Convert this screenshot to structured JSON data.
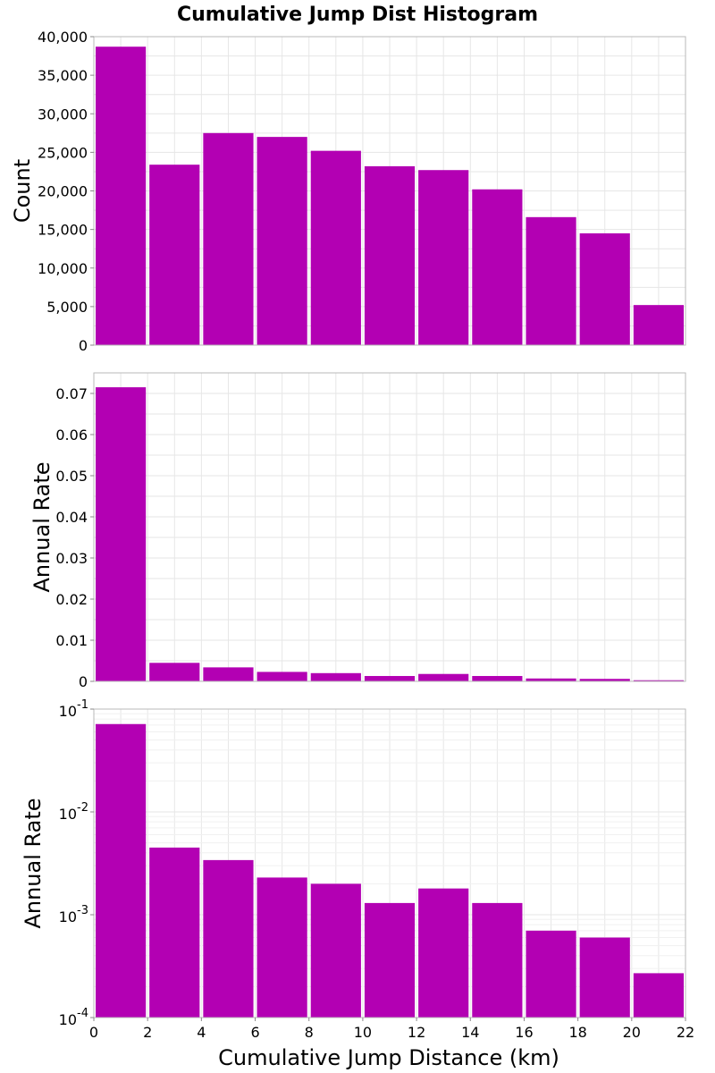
{
  "chart_data": {
    "type": "bar",
    "title": "Cumulative Jump Dist Histogram",
    "xlabel": "Cumulative Jump Distance (km)",
    "x_ticks": [
      "0",
      "2",
      "4",
      "6",
      "8",
      "10",
      "12",
      "14",
      "16",
      "18",
      "20",
      "22"
    ],
    "xlim": [
      0,
      22
    ],
    "bin_width": 2,
    "bar_color": "#b300b3",
    "bin_centers": [
      1,
      3,
      5,
      7,
      9,
      11,
      13,
      15,
      17,
      19,
      21
    ],
    "panels": [
      {
        "scale": "linear",
        "ylabel": "Count",
        "ylim": [
          0,
          40000
        ],
        "y_ticks": [
          {
            "value": 0,
            "label": "0"
          },
          {
            "value": 5000,
            "label": "5,000"
          },
          {
            "value": 10000,
            "label": "10,000"
          },
          {
            "value": 15000,
            "label": "15,000"
          },
          {
            "value": 20000,
            "label": "20,000"
          },
          {
            "value": 25000,
            "label": "25,000"
          },
          {
            "value": 30000,
            "label": "30,000"
          },
          {
            "value": 35000,
            "label": "35,000"
          },
          {
            "value": 40000,
            "label": "40,000"
          }
        ],
        "values": [
          38700,
          23400,
          27500,
          27000,
          25200,
          23200,
          22700,
          20200,
          16600,
          14500,
          5200
        ]
      },
      {
        "scale": "linear",
        "ylabel": "Annual Rate",
        "ylim": [
          0,
          0.075
        ],
        "y_ticks": [
          {
            "value": 0,
            "label": "0"
          },
          {
            "value": 0.01,
            "label": "0.01"
          },
          {
            "value": 0.02,
            "label": "0.02"
          },
          {
            "value": 0.03,
            "label": "0.03"
          },
          {
            "value": 0.04,
            "label": "0.04"
          },
          {
            "value": 0.05,
            "label": "0.05"
          },
          {
            "value": 0.06,
            "label": "0.06"
          },
          {
            "value": 0.07,
            "label": "0.07"
          }
        ],
        "values": [
          0.0715,
          0.0045,
          0.0034,
          0.0023,
          0.002,
          0.0013,
          0.0018,
          0.0013,
          0.0007,
          0.0006,
          0.00027
        ]
      },
      {
        "scale": "log",
        "ylabel": "Annual Rate",
        "ylim": [
          0.0001,
          0.1
        ],
        "y_ticks": [
          {
            "value": 0.1,
            "base": "10",
            "exp": "-1"
          },
          {
            "value": 0.01,
            "base": "10",
            "exp": "-2"
          },
          {
            "value": 0.001,
            "base": "10",
            "exp": "-3"
          },
          {
            "value": 0.0001,
            "base": "10",
            "exp": "-4"
          }
        ],
        "values": [
          0.0715,
          0.0045,
          0.0034,
          0.0023,
          0.002,
          0.0013,
          0.0018,
          0.0013,
          0.0007,
          0.0006,
          0.00027
        ]
      }
    ]
  }
}
